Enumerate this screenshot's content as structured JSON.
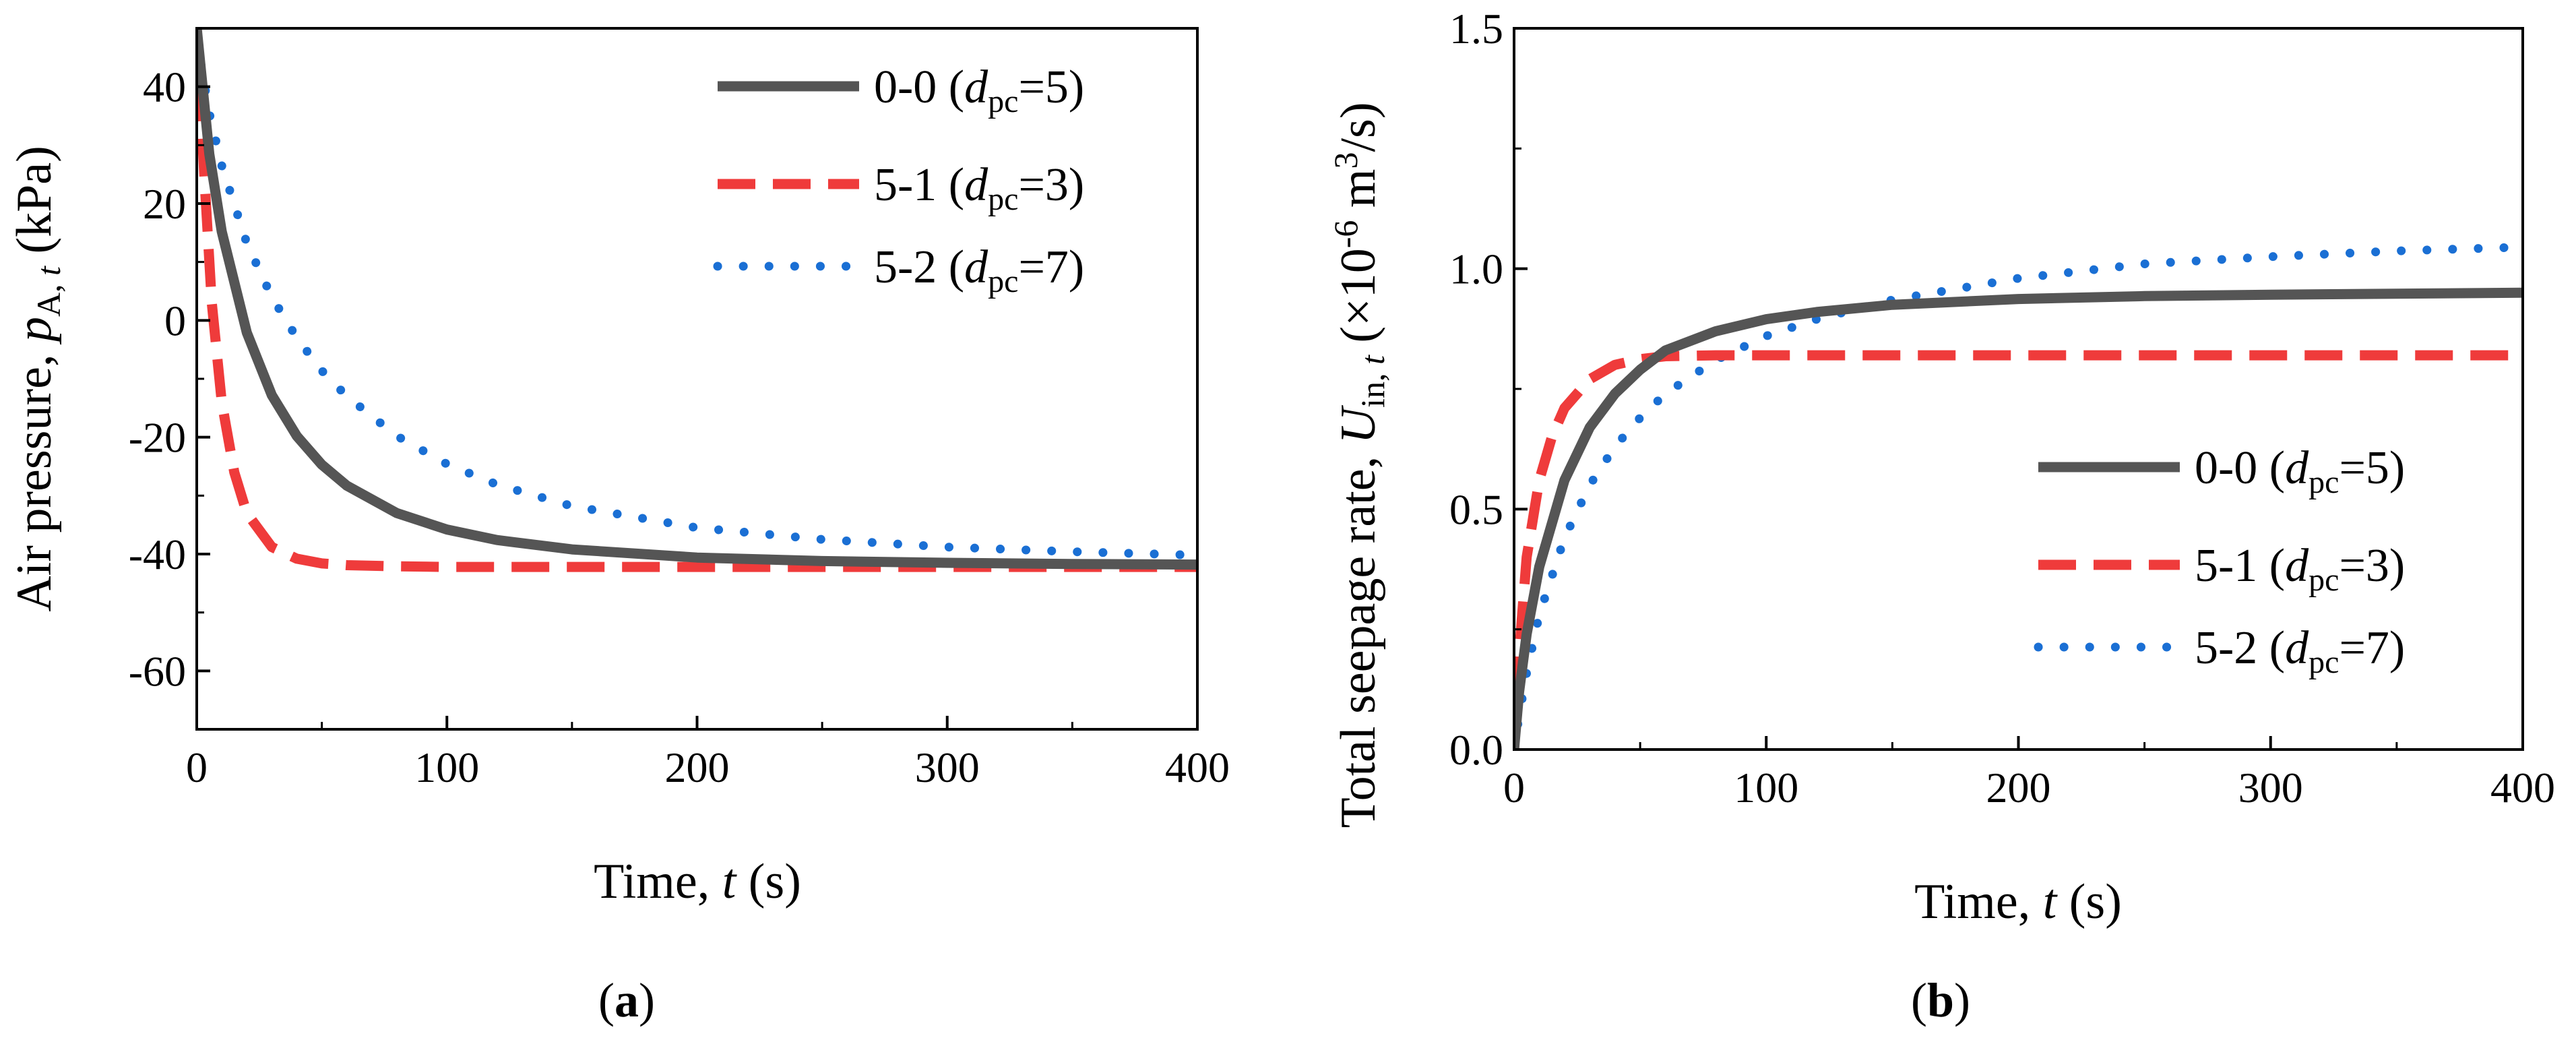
{
  "figure": {
    "panels": [
      {
        "id": "a",
        "open": "(",
        "letter": "a",
        "close": ")"
      },
      {
        "id": "b",
        "open": "(",
        "letter": "b",
        "close": ")"
      }
    ]
  },
  "colors": {
    "series_0_0": "#555555",
    "series_5_1": "#ef3b3b",
    "series_5_2": "#1a6fd4",
    "axis": "#000000"
  },
  "chart_data": [
    {
      "id": "a",
      "type": "line",
      "xlim": [
        0,
        400
      ],
      "ylim": [
        -70,
        50
      ],
      "xticks": [
        0,
        100,
        200,
        300,
        400
      ],
      "yticks": [
        -60,
        -40,
        -20,
        0,
        20,
        40
      ],
      "xtick_labels": [
        "0",
        "100",
        "200",
        "300",
        "400"
      ],
      "ytick_labels": [
        "-60",
        "-40",
        "-20",
        "0",
        "20",
        "40"
      ],
      "xlabel": {
        "pre": "Time, ",
        "var": "t",
        "post": " (s)"
      },
      "ylabel": {
        "pre": "Air pressure, ",
        "var": "p",
        "sub": "A, ",
        "sub_var": "t",
        "post": " (kPa)"
      },
      "legend_position": "top-right",
      "series": [
        {
          "name": "0-0",
          "label_pre": "0-0 (",
          "var": "d",
          "sub": "pc",
          "label_post": "=5)",
          "style": "solid",
          "color": "#555555",
          "x": [
            0,
            5,
            10,
            20,
            30,
            40,
            50,
            60,
            80,
            100,
            120,
            150,
            200,
            250,
            300,
            350,
            400
          ],
          "y": [
            50,
            28.5,
            15.2,
            -2.1,
            -12.8,
            -19.8,
            -24.7,
            -28.3,
            -33.0,
            -35.8,
            -37.6,
            -39.2,
            -40.6,
            -41.2,
            -41.5,
            -41.7,
            -41.8
          ]
        },
        {
          "name": "5-1",
          "label_pre": "5-1 (",
          "var": "d",
          "sub": "pc",
          "label_post": "=3)",
          "style": "dash",
          "color": "#ef3b3b",
          "x": [
            0,
            3,
            6,
            10,
            15,
            20,
            30,
            40,
            50,
            60,
            80,
            100,
            150,
            200,
            300,
            400
          ],
          "y": [
            50,
            25,
            3,
            -14,
            -26,
            -33,
            -38.8,
            -40.8,
            -41.6,
            -41.9,
            -42.1,
            -42.2,
            -42.2,
            -42.2,
            -42.2,
            -42.2
          ]
        },
        {
          "name": "5-2",
          "label_pre": "5-2 (",
          "var": "d",
          "sub": "pc",
          "label_post": "=7)",
          "style": "dot",
          "color": "#1a6fd4",
          "x": [
            0,
            5,
            10,
            20,
            30,
            40,
            50,
            60,
            80,
            100,
            120,
            150,
            200,
            250,
            300,
            350,
            400
          ],
          "y": [
            48,
            35.5,
            26.5,
            13.2,
            4.0,
            -3.0,
            -8.6,
            -13.0,
            -19.8,
            -24.6,
            -28.1,
            -31.8,
            -35.5,
            -37.5,
            -38.8,
            -39.6,
            -40.2
          ]
        }
      ]
    },
    {
      "id": "b",
      "type": "line",
      "xlim": [
        0,
        400
      ],
      "ylim": [
        0,
        1.5
      ],
      "xticks": [
        0,
        100,
        200,
        300,
        400
      ],
      "yticks": [
        0,
        0.5,
        1.0,
        1.5
      ],
      "xtick_labels": [
        "0",
        "100",
        "200",
        "300",
        "400"
      ],
      "ytick_labels": [
        "0.0",
        "0.5",
        "1.0",
        "1.5"
      ],
      "xlabel": {
        "pre": "Time, ",
        "var": "t",
        "post": " (s)"
      },
      "ylabel": {
        "pre": "Total seepage rate, ",
        "var": "U",
        "sub": "in, ",
        "sub_var": "t",
        "post_pre": " (×10",
        "sup": "-6",
        "post_mid": " m",
        "sup2": "3",
        "post_end": "/s)"
      },
      "legend_position": "bottom-right",
      "series": [
        {
          "name": "0-0",
          "label_pre": "0-0 (",
          "var": "d",
          "sub": "pc",
          "label_post": "=5)",
          "style": "solid",
          "color": "#555555",
          "x": [
            0,
            2,
            5,
            10,
            20,
            30,
            40,
            50,
            60,
            80,
            100,
            120,
            150,
            200,
            250,
            300,
            350,
            400
          ],
          "y": [
            0,
            0.12,
            0.24,
            0.38,
            0.56,
            0.67,
            0.74,
            0.79,
            0.83,
            0.87,
            0.895,
            0.91,
            0.925,
            0.937,
            0.943,
            0.946,
            0.948,
            0.95
          ]
        },
        {
          "name": "5-1",
          "label_pre": "5-1 (",
          "var": "d",
          "sub": "pc",
          "label_post": "=3)",
          "style": "dash",
          "color": "#ef3b3b",
          "x": [
            0,
            2,
            5,
            10,
            15,
            20,
            30,
            40,
            50,
            60,
            80,
            100,
            150,
            200,
            300,
            400
          ],
          "y": [
            0,
            0.2,
            0.4,
            0.56,
            0.65,
            0.71,
            0.77,
            0.8,
            0.812,
            0.818,
            0.82,
            0.82,
            0.82,
            0.82,
            0.82,
            0.82
          ]
        },
        {
          "name": "5-2",
          "label_pre": "5-2 (",
          "var": "d",
          "sub": "pc",
          "label_post": "=7)",
          "style": "dot",
          "color": "#1a6fd4",
          "x": [
            0,
            2,
            5,
            10,
            20,
            30,
            40,
            50,
            60,
            80,
            100,
            120,
            150,
            200,
            250,
            300,
            350,
            400
          ],
          "y": [
            0,
            0.07,
            0.16,
            0.28,
            0.44,
            0.55,
            0.63,
            0.69,
            0.74,
            0.81,
            0.86,
            0.895,
            0.935,
            0.98,
            1.01,
            1.025,
            1.037,
            1.045
          ]
        }
      ]
    }
  ]
}
